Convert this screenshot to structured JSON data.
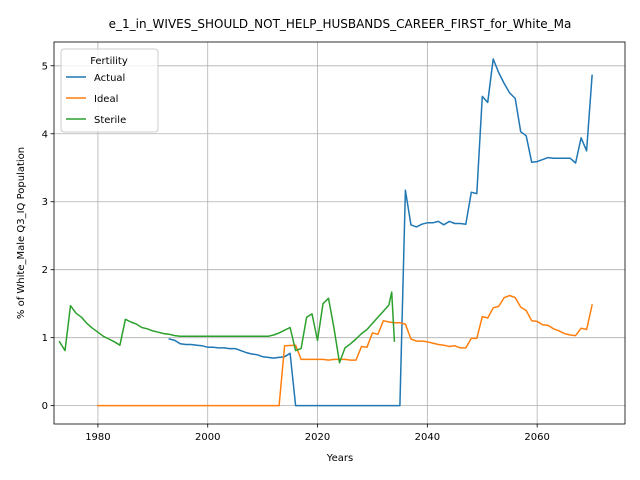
{
  "chart_data": {
    "type": "line",
    "title": "e_1_in_WIVES_SHOULD_NOT_HELP_HUSBANDS_CAREER_FIRST_for_White_Ma",
    "xlabel": "Years",
    "ylabel": "% of White_Male Q3_IQ Population",
    "xlim": [
      1972,
      2076
    ],
    "ylim": [
      -0.27,
      5.35
    ],
    "xticks": [
      1980,
      2000,
      2020,
      2040,
      2060
    ],
    "yticks": [
      0,
      1,
      2,
      3,
      4,
      5
    ],
    "grid": true,
    "legend": {
      "title": "Fertility",
      "placement": "top-left"
    },
    "series": [
      {
        "name": "Actual",
        "color": "#1f77b4",
        "points": [
          [
            1993,
            0.98
          ],
          [
            1994,
            0.96
          ],
          [
            1995,
            0.91
          ],
          [
            1996,
            0.9
          ],
          [
            1997,
            0.9
          ],
          [
            1998,
            0.89
          ],
          [
            1999,
            0.88
          ],
          [
            2000,
            0.86
          ],
          [
            2001,
            0.86
          ],
          [
            2002,
            0.85
          ],
          [
            2003,
            0.85
          ],
          [
            2004,
            0.84
          ],
          [
            2005,
            0.84
          ],
          [
            2006,
            0.81
          ],
          [
            2007,
            0.78
          ],
          [
            2008,
            0.76
          ],
          [
            2009,
            0.75
          ],
          [
            2010,
            0.72
          ],
          [
            2011,
            0.71
          ],
          [
            2012,
            0.7
          ],
          [
            2013,
            0.71
          ],
          [
            2014,
            0.72
          ],
          [
            2015,
            0.77
          ],
          [
            2016,
            0.0
          ],
          [
            2017,
            0.0
          ],
          [
            2020,
            0.0
          ],
          [
            2025,
            0.0
          ],
          [
            2030,
            0.0
          ],
          [
            2035,
            0.0
          ],
          [
            2036,
            3.17
          ],
          [
            2037,
            2.66
          ],
          [
            2038,
            2.63
          ],
          [
            2039,
            2.67
          ],
          [
            2040,
            2.69
          ],
          [
            2041,
            2.69
          ],
          [
            2042,
            2.71
          ],
          [
            2043,
            2.66
          ],
          [
            2044,
            2.71
          ],
          [
            2045,
            2.68
          ],
          [
            2046,
            2.68
          ],
          [
            2047,
            2.67
          ],
          [
            2048,
            3.14
          ],
          [
            2049,
            3.12
          ],
          [
            2050,
            4.55
          ],
          [
            2051,
            4.46
          ],
          [
            2052,
            5.1
          ],
          [
            2053,
            4.9
          ],
          [
            2054,
            4.74
          ],
          [
            2055,
            4.6
          ],
          [
            2056,
            4.52
          ],
          [
            2057,
            4.03
          ],
          [
            2058,
            3.97
          ],
          [
            2059,
            3.58
          ],
          [
            2060,
            3.59
          ],
          [
            2061,
            3.62
          ],
          [
            2062,
            3.65
          ],
          [
            2063,
            3.64
          ],
          [
            2064,
            3.64
          ],
          [
            2065,
            3.64
          ],
          [
            2066,
            3.64
          ],
          [
            2067,
            3.57
          ],
          [
            2068,
            3.94
          ],
          [
            2069,
            3.75
          ],
          [
            2070,
            4.86
          ]
        ]
      },
      {
        "name": "Ideal",
        "color": "#ff7f0e",
        "points": [
          [
            1980,
            0.0
          ],
          [
            1990,
            0.0
          ],
          [
            2000,
            0.0
          ],
          [
            2010,
            0.0
          ],
          [
            2013,
            0.0
          ],
          [
            2014,
            0.88
          ],
          [
            2016,
            0.89
          ],
          [
            2017,
            0.68
          ],
          [
            2018,
            0.68
          ],
          [
            2019,
            0.68
          ],
          [
            2020,
            0.68
          ],
          [
            2021,
            0.68
          ],
          [
            2022,
            0.67
          ],
          [
            2023,
            0.68
          ],
          [
            2024,
            0.68
          ],
          [
            2025,
            0.68
          ],
          [
            2026,
            0.67
          ],
          [
            2027,
            0.67
          ],
          [
            2028,
            0.87
          ],
          [
            2029,
            0.86
          ],
          [
            2030,
            1.07
          ],
          [
            2031,
            1.05
          ],
          [
            2032,
            1.25
          ],
          [
            2033,
            1.23
          ],
          [
            2034,
            1.22
          ],
          [
            2035,
            1.22
          ],
          [
            2036,
            1.2
          ],
          [
            2037,
            0.98
          ],
          [
            2038,
            0.95
          ],
          [
            2039,
            0.95
          ],
          [
            2040,
            0.94
          ],
          [
            2041,
            0.92
          ],
          [
            2042,
            0.9
          ],
          [
            2043,
            0.89
          ],
          [
            2044,
            0.87
          ],
          [
            2045,
            0.88
          ],
          [
            2046,
            0.85
          ],
          [
            2047,
            0.85
          ],
          [
            2048,
            0.99
          ],
          [
            2049,
            0.99
          ],
          [
            2050,
            1.31
          ],
          [
            2051,
            1.29
          ],
          [
            2052,
            1.44
          ],
          [
            2053,
            1.46
          ],
          [
            2054,
            1.59
          ],
          [
            2055,
            1.62
          ],
          [
            2056,
            1.59
          ],
          [
            2057,
            1.45
          ],
          [
            2058,
            1.4
          ],
          [
            2059,
            1.25
          ],
          [
            2060,
            1.24
          ],
          [
            2061,
            1.19
          ],
          [
            2062,
            1.18
          ],
          [
            2063,
            1.13
          ],
          [
            2064,
            1.1
          ],
          [
            2065,
            1.06
          ],
          [
            2066,
            1.04
          ],
          [
            2067,
            1.03
          ],
          [
            2068,
            1.14
          ],
          [
            2069,
            1.12
          ],
          [
            2070,
            1.48
          ]
        ]
      },
      {
        "name": "Sterile",
        "color": "#2ca02c",
        "points": [
          [
            1973,
            0.94
          ],
          [
            1974,
            0.81
          ],
          [
            1975,
            1.47
          ],
          [
            1976,
            1.36
          ],
          [
            1977,
            1.3
          ],
          [
            1978,
            1.21
          ],
          [
            1979,
            1.14
          ],
          [
            1980,
            1.08
          ],
          [
            1981,
            1.02
          ],
          [
            1982,
            0.98
          ],
          [
            1983,
            0.94
          ],
          [
            1984,
            0.89
          ],
          [
            1985,
            1.27
          ],
          [
            1986,
            1.23
          ],
          [
            1987,
            1.2
          ],
          [
            1988,
            1.15
          ],
          [
            1989,
            1.13
          ],
          [
            1990,
            1.1
          ],
          [
            1991,
            1.08
          ],
          [
            1992,
            1.06
          ],
          [
            1993,
            1.05
          ],
          [
            1994,
            1.03
          ],
          [
            1995,
            1.02
          ],
          [
            1996,
            1.02
          ],
          [
            1998,
            1.02
          ],
          [
            2000,
            1.02
          ],
          [
            2005,
            1.02
          ],
          [
            2010,
            1.02
          ],
          [
            2011,
            1.02
          ],
          [
            2012,
            1.04
          ],
          [
            2013,
            1.07
          ],
          [
            2014,
            1.11
          ],
          [
            2015,
            1.15
          ],
          [
            2016,
            0.81
          ],
          [
            2017,
            0.84
          ],
          [
            2018,
            1.3
          ],
          [
            2019,
            1.35
          ],
          [
            2020,
            0.96
          ],
          [
            2021,
            1.5
          ],
          [
            2022,
            1.58
          ],
          [
            2023,
            1.14
          ],
          [
            2024,
            0.63
          ],
          [
            2025,
            0.85
          ],
          [
            2026,
            0.91
          ],
          [
            2027,
            0.98
          ],
          [
            2028,
            1.06
          ],
          [
            2029,
            1.12
          ],
          [
            2030,
            1.21
          ],
          [
            2031,
            1.3
          ],
          [
            2032,
            1.39
          ],
          [
            2033,
            1.48
          ],
          [
            2033.5,
            1.67
          ],
          [
            2034,
            0.95
          ]
        ]
      }
    ]
  }
}
